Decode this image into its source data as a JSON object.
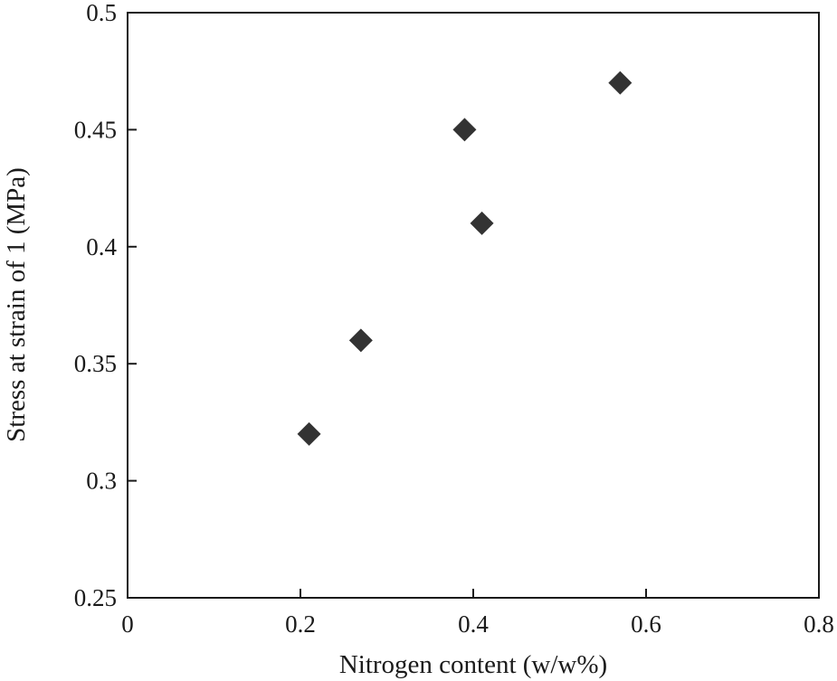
{
  "chart_data": {
    "type": "scatter",
    "title": "",
    "xlabel": "Nitrogen content (w/w%)",
    "ylabel": "Stress at strain of 1 (MPa)",
    "xlim": [
      0,
      0.8
    ],
    "ylim": [
      0.25,
      0.5
    ],
    "x_ticks": [
      0,
      0.2,
      0.4,
      0.6,
      0.8
    ],
    "x_tick_labels": [
      "0",
      "0.2",
      "0.4",
      "0.6",
      "0.8"
    ],
    "y_ticks": [
      0.25,
      0.3,
      0.35,
      0.4,
      0.45,
      0.5
    ],
    "y_tick_labels": [
      "0.25",
      "0.3",
      "0.35",
      "0.4",
      "0.45",
      "0.5"
    ],
    "grid": false,
    "legend": "none",
    "marker": "diamond",
    "marker_color": "#333333",
    "series": [
      {
        "x": [
          0.21,
          0.27,
          0.39,
          0.41,
          0.57
        ],
        "y": [
          0.32,
          0.36,
          0.45,
          0.41,
          0.47
        ]
      }
    ]
  }
}
